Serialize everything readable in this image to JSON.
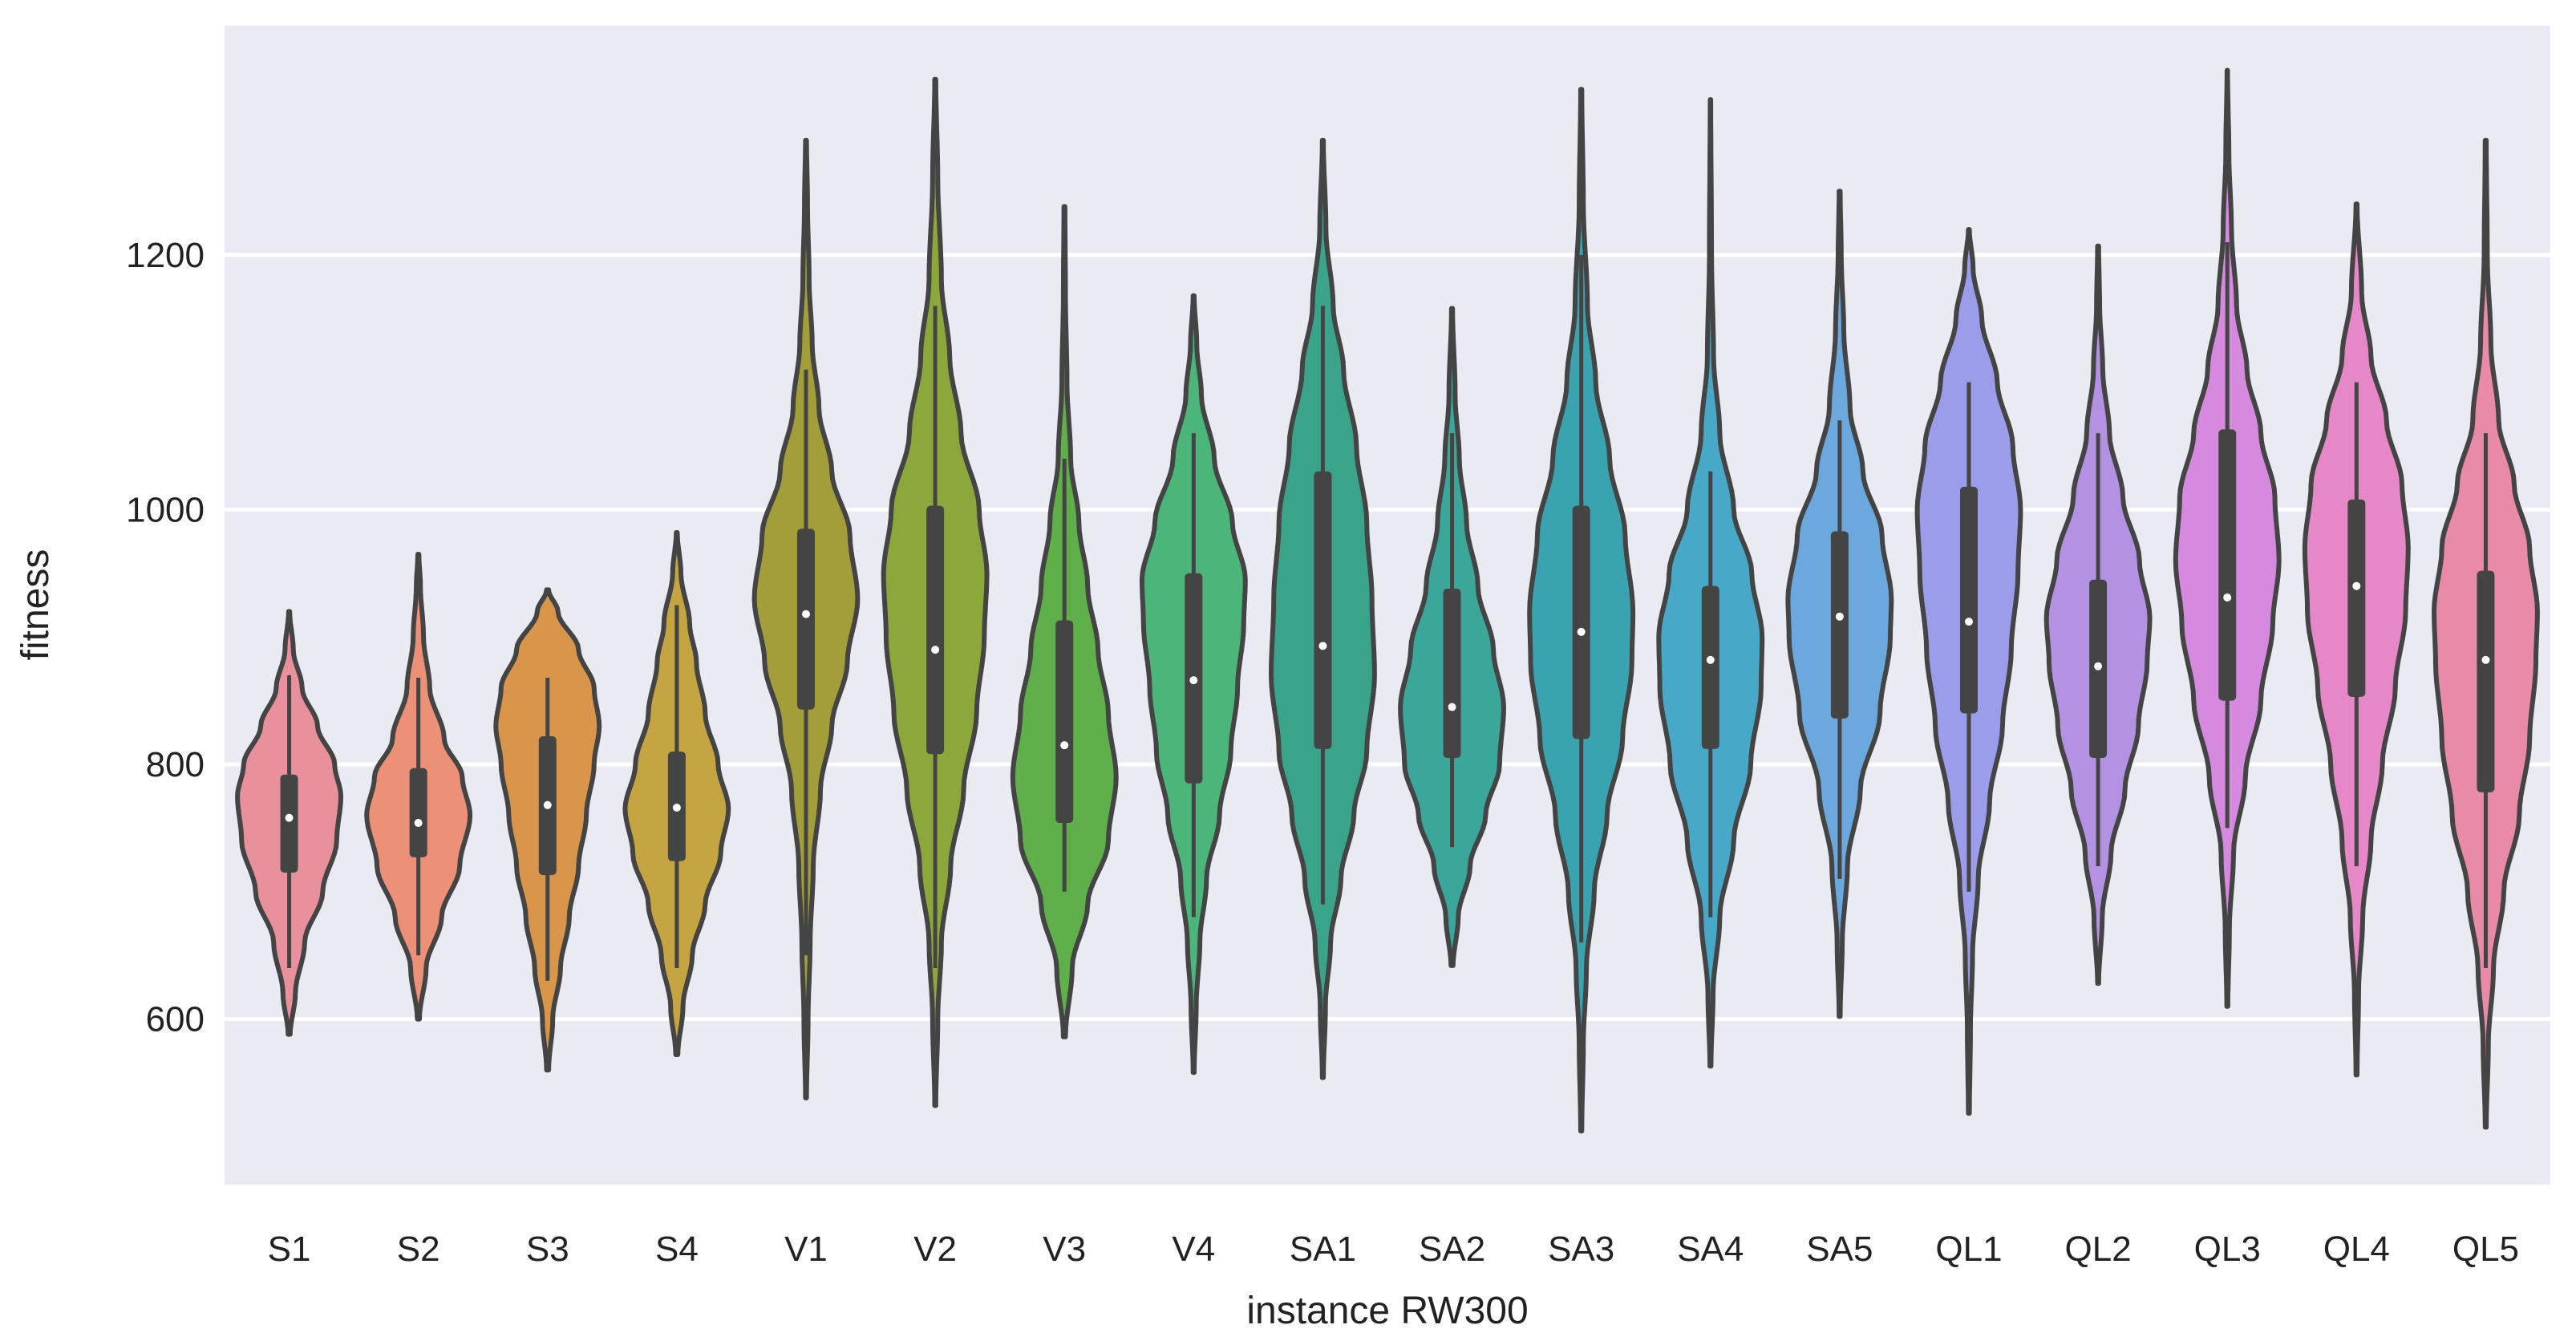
{
  "chart_data": {
    "type": "violin",
    "title": "",
    "xlabel": "instance RW300",
    "ylabel": "fitness",
    "ylim": [
      470,
      1380
    ],
    "yticks": [
      600,
      800,
      1000,
      1200
    ],
    "grid": true,
    "categories": [
      "S1",
      "S2",
      "S3",
      "S4",
      "V1",
      "V2",
      "V3",
      "V4",
      "SA1",
      "SA2",
      "SA3",
      "SA4",
      "SA5",
      "QL1",
      "QL2",
      "QL3",
      "QL4",
      "QL5"
    ],
    "colors": [
      "#e8909b",
      "#ec9078",
      "#d9964a",
      "#c5a442",
      "#a29f3a",
      "#8da83a",
      "#5fb04a",
      "#4bb57a",
      "#3aa48a",
      "#3aa79a",
      "#3aa3b0",
      "#48a8c8",
      "#6aa8de",
      "#9b9cea",
      "#b392e4",
      "#d58ae0",
      "#e687c8",
      "#e88aa8"
    ],
    "series": [
      {
        "name": "S1",
        "min": 588,
        "max": 920,
        "q1": 715,
        "median": 758,
        "q3": 792,
        "whisker_low": 640,
        "whisker_high": 870,
        "peak": 775,
        "shape": [
          [
            588,
            0.02
          ],
          [
            620,
            0.12
          ],
          [
            660,
            0.3
          ],
          [
            700,
            0.65
          ],
          [
            740,
            0.92
          ],
          [
            775,
            1.0
          ],
          [
            800,
            0.88
          ],
          [
            830,
            0.55
          ],
          [
            860,
            0.25
          ],
          [
            890,
            0.08
          ],
          [
            920,
            0.01
          ]
        ]
      },
      {
        "name": "S2",
        "min": 600,
        "max": 965,
        "q1": 727,
        "median": 754,
        "q3": 797,
        "whisker_low": 650,
        "whisker_high": 868,
        "peak": 760,
        "shape": [
          [
            600,
            0.02
          ],
          [
            640,
            0.15
          ],
          [
            680,
            0.45
          ],
          [
            720,
            0.8
          ],
          [
            760,
            1.0
          ],
          [
            790,
            0.85
          ],
          [
            820,
            0.5
          ],
          [
            860,
            0.22
          ],
          [
            900,
            0.1
          ],
          [
            940,
            0.04
          ],
          [
            965,
            0.01
          ]
        ]
      },
      {
        "name": "S3",
        "min": 560,
        "max": 937,
        "q1": 713,
        "median": 768,
        "q3": 822,
        "whisker_low": 630,
        "whisker_high": 868,
        "peak": 810,
        "shape": [
          [
            560,
            0.02
          ],
          [
            600,
            0.1
          ],
          [
            640,
            0.25
          ],
          [
            680,
            0.42
          ],
          [
            720,
            0.6
          ],
          [
            760,
            0.75
          ],
          [
            800,
            0.9
          ],
          [
            830,
            1.0
          ],
          [
            860,
            0.9
          ],
          [
            890,
            0.6
          ],
          [
            920,
            0.2
          ],
          [
            937,
            0.02
          ]
        ]
      },
      {
        "name": "S4",
        "min": 572,
        "max": 982,
        "q1": 724,
        "median": 766,
        "q3": 810,
        "whisker_low": 640,
        "whisker_high": 925,
        "peak": 765,
        "shape": [
          [
            572,
            0.02
          ],
          [
            610,
            0.12
          ],
          [
            650,
            0.3
          ],
          [
            690,
            0.55
          ],
          [
            730,
            0.85
          ],
          [
            765,
            1.0
          ],
          [
            800,
            0.8
          ],
          [
            840,
            0.55
          ],
          [
            880,
            0.38
          ],
          [
            910,
            0.25
          ],
          [
            950,
            0.08
          ],
          [
            982,
            0.01
          ]
        ]
      },
      {
        "name": "V1",
        "min": 538,
        "max": 1290,
        "q1": 843,
        "median": 918,
        "q3": 985,
        "whisker_low": 650,
        "whisker_high": 1110,
        "peak": 930,
        "shape": [
          [
            538,
            0.01
          ],
          [
            600,
            0.04
          ],
          [
            660,
            0.08
          ],
          [
            720,
            0.14
          ],
          [
            780,
            0.28
          ],
          [
            830,
            0.5
          ],
          [
            880,
            0.8
          ],
          [
            930,
            1.0
          ],
          [
            980,
            0.85
          ],
          [
            1030,
            0.5
          ],
          [
            1080,
            0.25
          ],
          [
            1130,
            0.12
          ],
          [
            1180,
            0.06
          ],
          [
            1240,
            0.03
          ],
          [
            1290,
            0.01
          ]
        ]
      },
      {
        "name": "V2",
        "min": 532,
        "max": 1338,
        "q1": 808,
        "median": 890,
        "q3": 1003,
        "whisker_low": 640,
        "whisker_high": 1160,
        "peak": 950,
        "shape": [
          [
            532,
            0.01
          ],
          [
            600,
            0.05
          ],
          [
            660,
            0.12
          ],
          [
            720,
            0.3
          ],
          [
            780,
            0.55
          ],
          [
            840,
            0.8
          ],
          [
            900,
            0.95
          ],
          [
            950,
            1.0
          ],
          [
            1000,
            0.85
          ],
          [
            1060,
            0.5
          ],
          [
            1120,
            0.28
          ],
          [
            1180,
            0.12
          ],
          [
            1260,
            0.05
          ],
          [
            1338,
            0.01
          ]
        ]
      },
      {
        "name": "V3",
        "min": 586,
        "max": 1238,
        "q1": 754,
        "median": 815,
        "q3": 913,
        "whisker_low": 700,
        "whisker_high": 1040,
        "peak": 800,
        "shape": [
          [
            586,
            0.02
          ],
          [
            640,
            0.15
          ],
          [
            690,
            0.45
          ],
          [
            740,
            0.85
          ],
          [
            790,
            1.0
          ],
          [
            840,
            0.85
          ],
          [
            890,
            0.65
          ],
          [
            940,
            0.45
          ],
          [
            990,
            0.28
          ],
          [
            1040,
            0.12
          ],
          [
            1100,
            0.05
          ],
          [
            1170,
            0.02
          ],
          [
            1238,
            0.01
          ]
        ]
      },
      {
        "name": "V4",
        "min": 558,
        "max": 1168,
        "q1": 785,
        "median": 866,
        "q3": 950,
        "whisker_low": 680,
        "whisker_high": 1060,
        "peak": 935,
        "shape": [
          [
            558,
            0.01
          ],
          [
            610,
            0.05
          ],
          [
            660,
            0.12
          ],
          [
            710,
            0.25
          ],
          [
            760,
            0.5
          ],
          [
            810,
            0.72
          ],
          [
            860,
            0.85
          ],
          [
            910,
            0.97
          ],
          [
            945,
            1.0
          ],
          [
            990,
            0.75
          ],
          [
            1040,
            0.4
          ],
          [
            1090,
            0.15
          ],
          [
            1130,
            0.06
          ],
          [
            1168,
            0.01
          ]
        ]
      },
      {
        "name": "SA1",
        "min": 554,
        "max": 1290,
        "q1": 812,
        "median": 893,
        "q3": 1030,
        "whisker_low": 690,
        "whisker_high": 1160,
        "peak": 870,
        "shape": [
          [
            554,
            0.01
          ],
          [
            610,
            0.05
          ],
          [
            660,
            0.15
          ],
          [
            710,
            0.35
          ],
          [
            760,
            0.6
          ],
          [
            810,
            0.85
          ],
          [
            870,
            1.0
          ],
          [
            930,
            0.95
          ],
          [
            990,
            0.85
          ],
          [
            1050,
            0.65
          ],
          [
            1110,
            0.4
          ],
          [
            1160,
            0.2
          ],
          [
            1220,
            0.06
          ],
          [
            1290,
            0.01
          ]
        ]
      },
      {
        "name": "SA2",
        "min": 642,
        "max": 1158,
        "q1": 805,
        "median": 845,
        "q3": 938,
        "whisker_low": 735,
        "whisker_high": 1060,
        "peak": 845,
        "shape": [
          [
            642,
            0.02
          ],
          [
            680,
            0.12
          ],
          [
            720,
            0.35
          ],
          [
            760,
            0.65
          ],
          [
            800,
            0.92
          ],
          [
            845,
            1.0
          ],
          [
            890,
            0.8
          ],
          [
            940,
            0.5
          ],
          [
            990,
            0.28
          ],
          [
            1040,
            0.14
          ],
          [
            1090,
            0.06
          ],
          [
            1158,
            0.01
          ]
        ]
      },
      {
        "name": "SA3",
        "min": 512,
        "max": 1330,
        "q1": 820,
        "median": 904,
        "q3": 1003,
        "whisker_low": 660,
        "whisker_high": 1200,
        "peak": 905,
        "shape": [
          [
            512,
            0.01
          ],
          [
            580,
            0.04
          ],
          [
            640,
            0.1
          ],
          [
            700,
            0.25
          ],
          [
            760,
            0.5
          ],
          [
            820,
            0.8
          ],
          [
            880,
            0.98
          ],
          [
            920,
            1.0
          ],
          [
            980,
            0.85
          ],
          [
            1040,
            0.55
          ],
          [
            1100,
            0.28
          ],
          [
            1160,
            0.12
          ],
          [
            1240,
            0.04
          ],
          [
            1330,
            0.01
          ]
        ]
      },
      {
        "name": "SA4",
        "min": 563,
        "max": 1322,
        "q1": 812,
        "median": 882,
        "q3": 940,
        "whisker_low": 680,
        "whisker_high": 1030,
        "peak": 900,
        "shape": [
          [
            563,
            0.01
          ],
          [
            620,
            0.05
          ],
          [
            680,
            0.18
          ],
          [
            740,
            0.45
          ],
          [
            800,
            0.78
          ],
          [
            860,
            0.98
          ],
          [
            900,
            1.0
          ],
          [
            950,
            0.8
          ],
          [
            1000,
            0.45
          ],
          [
            1060,
            0.18
          ],
          [
            1120,
            0.06
          ],
          [
            1200,
            0.02
          ],
          [
            1322,
            0.005
          ]
        ]
      },
      {
        "name": "SA5",
        "min": 602,
        "max": 1250,
        "q1": 836,
        "median": 916,
        "q3": 983,
        "whisker_low": 710,
        "whisker_high": 1070,
        "peak": 925,
        "shape": [
          [
            602,
            0.01
          ],
          [
            660,
            0.05
          ],
          [
            720,
            0.15
          ],
          [
            780,
            0.4
          ],
          [
            840,
            0.78
          ],
          [
            900,
            0.98
          ],
          [
            930,
            1.0
          ],
          [
            980,
            0.82
          ],
          [
            1030,
            0.45
          ],
          [
            1080,
            0.2
          ],
          [
            1140,
            0.08
          ],
          [
            1200,
            0.03
          ],
          [
            1250,
            0.01
          ]
        ]
      },
      {
        "name": "QL1",
        "min": 526,
        "max": 1220,
        "q1": 840,
        "median": 912,
        "q3": 1018,
        "whisker_low": 700,
        "whisker_high": 1100,
        "peak": 1000,
        "shape": [
          [
            526,
            0.01
          ],
          [
            590,
            0.03
          ],
          [
            650,
            0.07
          ],
          [
            710,
            0.18
          ],
          [
            770,
            0.4
          ],
          [
            830,
            0.65
          ],
          [
            890,
            0.82
          ],
          [
            950,
            0.95
          ],
          [
            1000,
            1.0
          ],
          [
            1050,
            0.85
          ],
          [
            1100,
            0.55
          ],
          [
            1150,
            0.25
          ],
          [
            1190,
            0.08
          ],
          [
            1220,
            0.01
          ]
        ]
      },
      {
        "name": "QL2",
        "min": 628,
        "max": 1207,
        "q1": 805,
        "median": 877,
        "q3": 945,
        "whisker_low": 720,
        "whisker_high": 1060,
        "peak": 915,
        "shape": [
          [
            628,
            0.01
          ],
          [
            680,
            0.08
          ],
          [
            730,
            0.25
          ],
          [
            780,
            0.52
          ],
          [
            830,
            0.78
          ],
          [
            880,
            0.95
          ],
          [
            915,
            1.0
          ],
          [
            960,
            0.8
          ],
          [
            1010,
            0.48
          ],
          [
            1060,
            0.22
          ],
          [
            1110,
            0.09
          ],
          [
            1160,
            0.03
          ],
          [
            1207,
            0.01
          ]
        ]
      },
      {
        "name": "QL3",
        "min": 610,
        "max": 1345,
        "q1": 850,
        "median": 931,
        "q3": 1063,
        "whisker_low": 750,
        "whisker_high": 1210,
        "peak": 960,
        "shape": [
          [
            610,
            0.01
          ],
          [
            670,
            0.04
          ],
          [
            730,
            0.12
          ],
          [
            790,
            0.35
          ],
          [
            850,
            0.65
          ],
          [
            910,
            0.88
          ],
          [
            960,
            1.0
          ],
          [
            1010,
            0.92
          ],
          [
            1060,
            0.65
          ],
          [
            1110,
            0.38
          ],
          [
            1160,
            0.18
          ],
          [
            1220,
            0.08
          ],
          [
            1280,
            0.03
          ],
          [
            1345,
            0.005
          ]
        ]
      },
      {
        "name": "QL4",
        "min": 556,
        "max": 1240,
        "q1": 853,
        "median": 940,
        "q3": 1008,
        "whisker_low": 720,
        "whisker_high": 1100,
        "peak": 970,
        "shape": [
          [
            556,
            0.01
          ],
          [
            620,
            0.04
          ],
          [
            680,
            0.12
          ],
          [
            740,
            0.28
          ],
          [
            800,
            0.5
          ],
          [
            860,
            0.75
          ],
          [
            920,
            0.95
          ],
          [
            970,
            1.0
          ],
          [
            1020,
            0.88
          ],
          [
            1070,
            0.58
          ],
          [
            1120,
            0.28
          ],
          [
            1170,
            0.1
          ],
          [
            1240,
            0.01
          ]
        ]
      },
      {
        "name": "QL5",
        "min": 515,
        "max": 1290,
        "q1": 778,
        "median": 882,
        "q3": 952,
        "whisker_low": 640,
        "whisker_high": 1060,
        "peak": 920,
        "shape": [
          [
            515,
            0.01
          ],
          [
            580,
            0.05
          ],
          [
            640,
            0.15
          ],
          [
            700,
            0.35
          ],
          [
            760,
            0.65
          ],
          [
            820,
            0.85
          ],
          [
            880,
            0.97
          ],
          [
            920,
            1.0
          ],
          [
            970,
            0.85
          ],
          [
            1020,
            0.55
          ],
          [
            1070,
            0.25
          ],
          [
            1130,
            0.1
          ],
          [
            1200,
            0.03
          ],
          [
            1290,
            0.01
          ]
        ]
      }
    ]
  }
}
